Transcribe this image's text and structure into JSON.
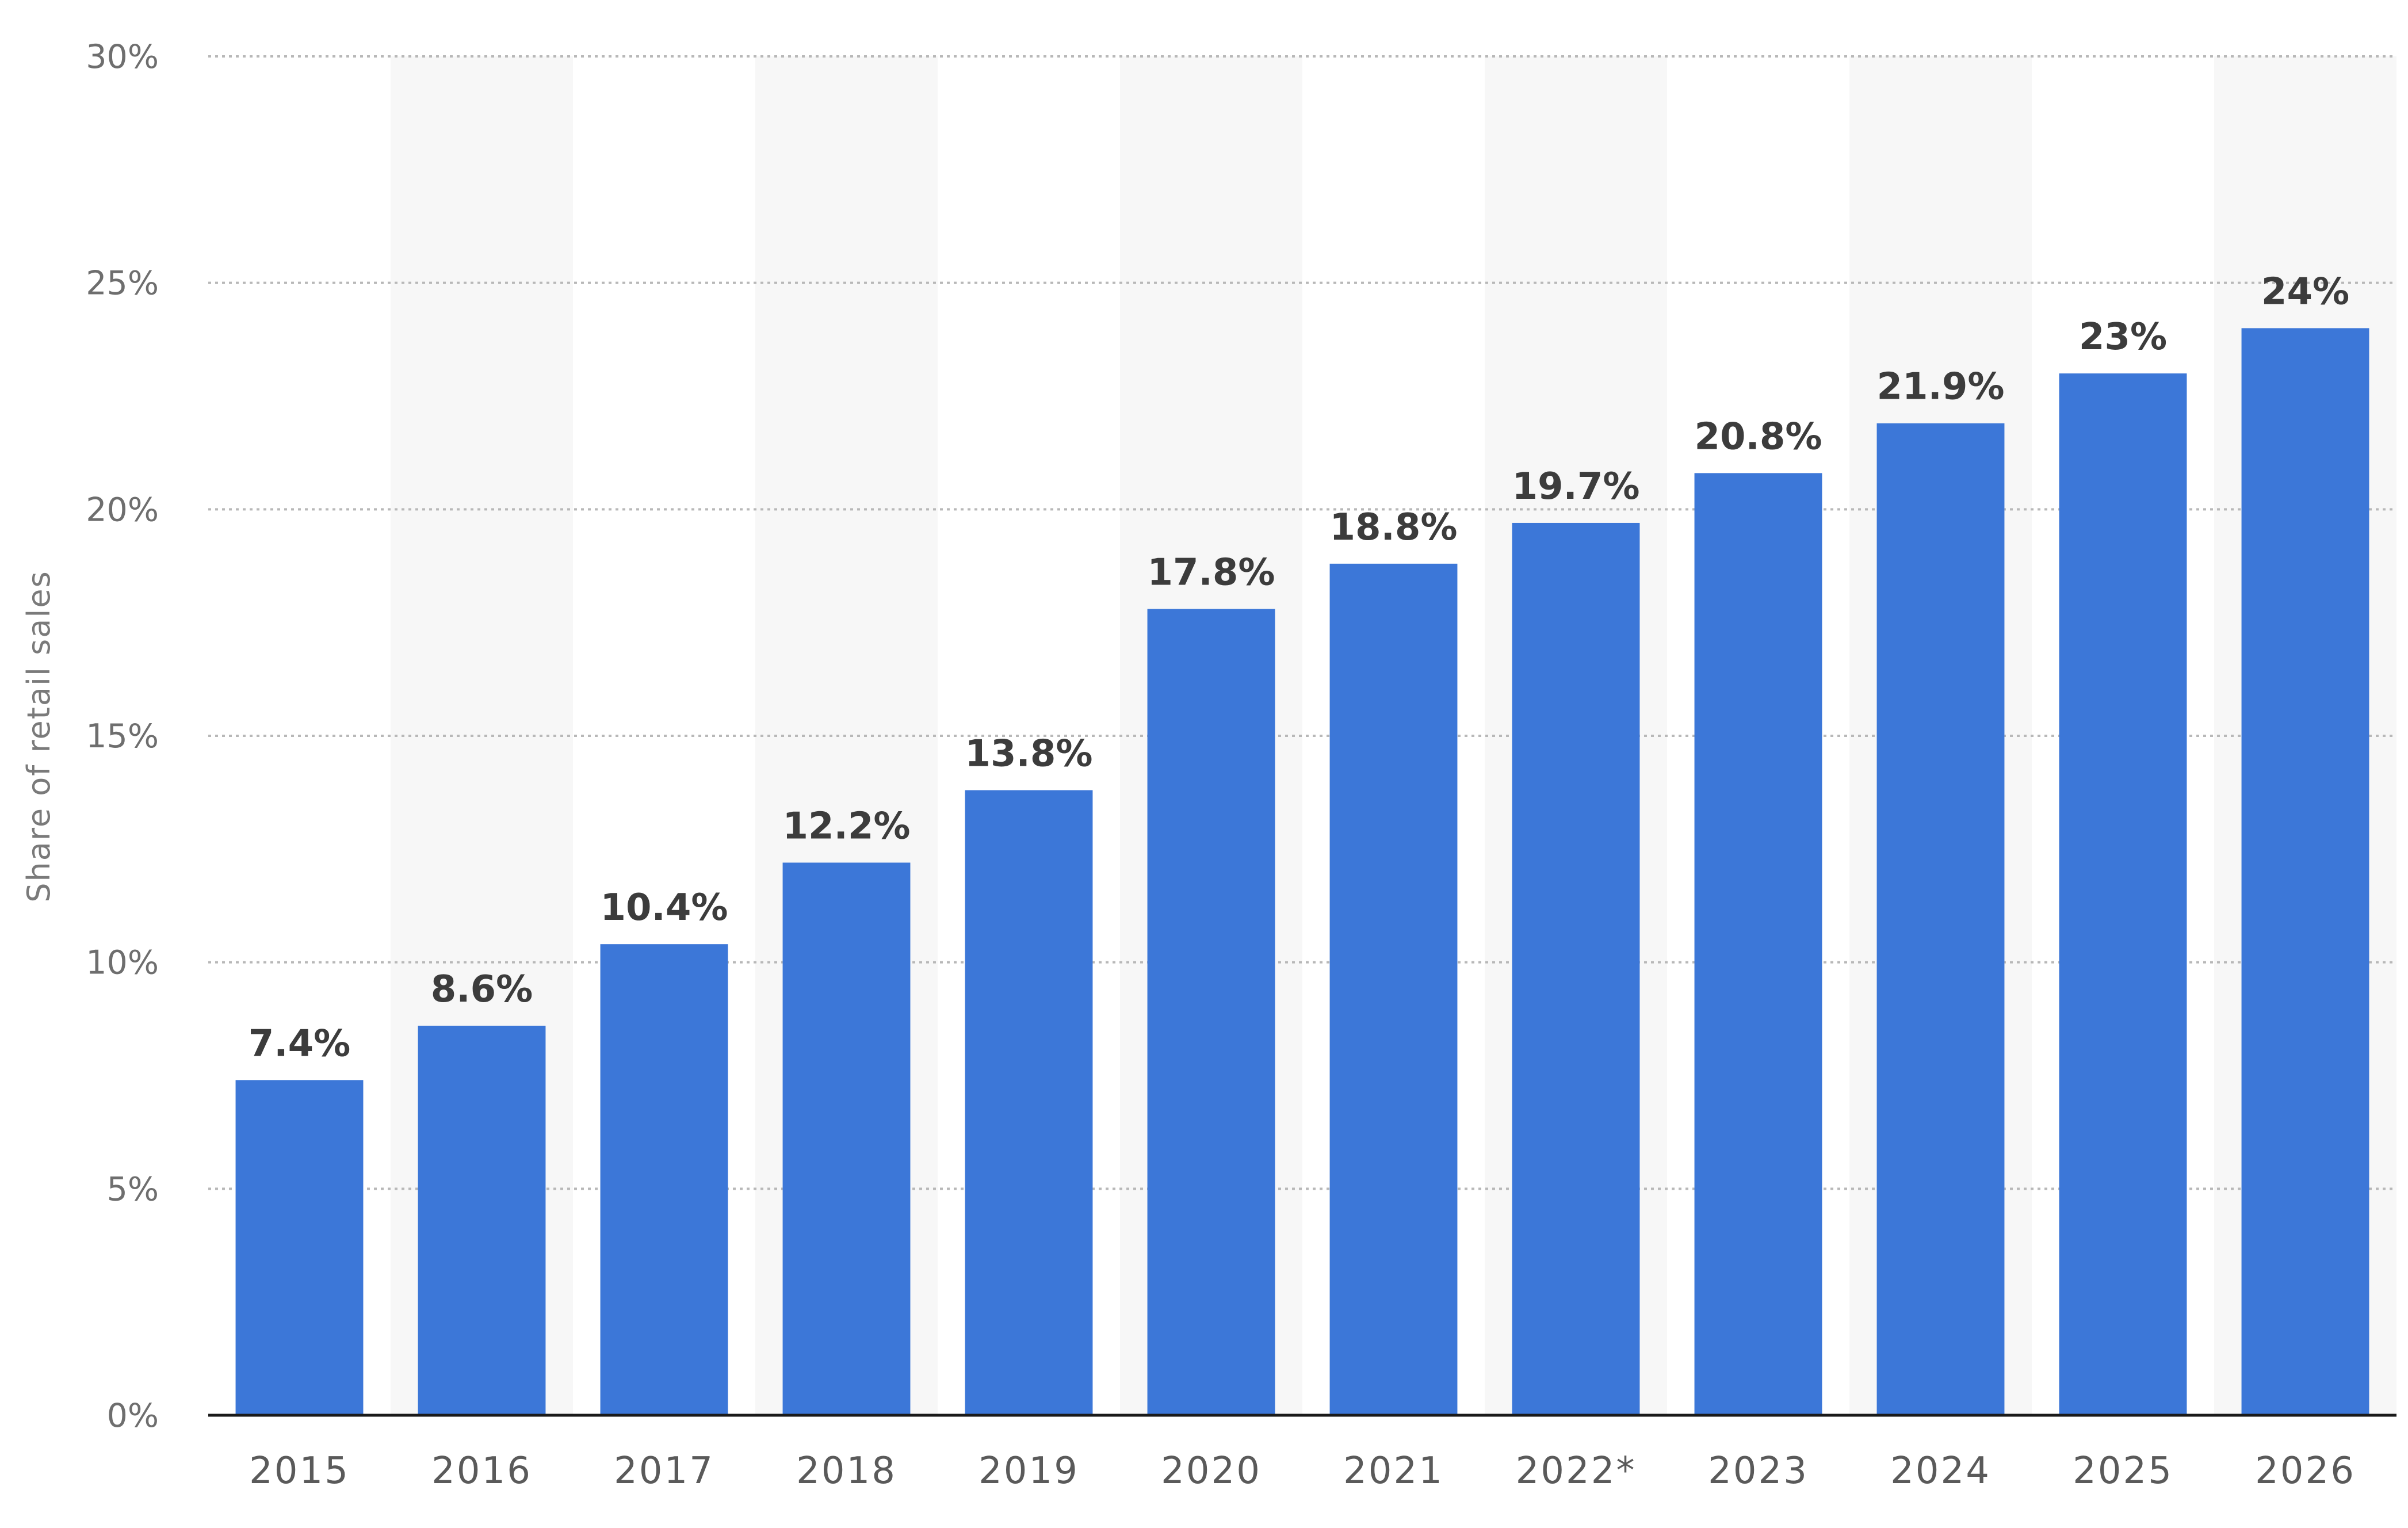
{
  "chart_data": {
    "type": "bar",
    "title": "",
    "xlabel": "",
    "ylabel": "Share of retail sales",
    "categories": [
      "2015",
      "2016",
      "2017",
      "2018",
      "2019",
      "2020",
      "2021",
      "2022*",
      "2023",
      "2024",
      "2025",
      "2026"
    ],
    "values": [
      7.4,
      8.6,
      10.4,
      12.2,
      13.8,
      17.8,
      18.8,
      19.7,
      20.8,
      21.9,
      23,
      24
    ],
    "value_labels": [
      "7.4%",
      "8.6%",
      "10.4%",
      "12.2%",
      "13.8%",
      "17.8%",
      "18.8%",
      "19.7%",
      "20.8%",
      "21.9%",
      "23%",
      "24%"
    ],
    "ylim": [
      0,
      30
    ],
    "yticks": [
      0,
      5,
      10,
      15,
      20,
      25,
      30
    ],
    "ytick_labels": [
      "0%",
      "5%",
      "10%",
      "15%",
      "20%",
      "25%",
      "30%"
    ],
    "grid": true,
    "legend": "none",
    "colors": {
      "bar": "#3c77d8",
      "band": "#f7f7f7",
      "grid": "#b8b8b8",
      "axis": "#1a1a1a"
    }
  }
}
